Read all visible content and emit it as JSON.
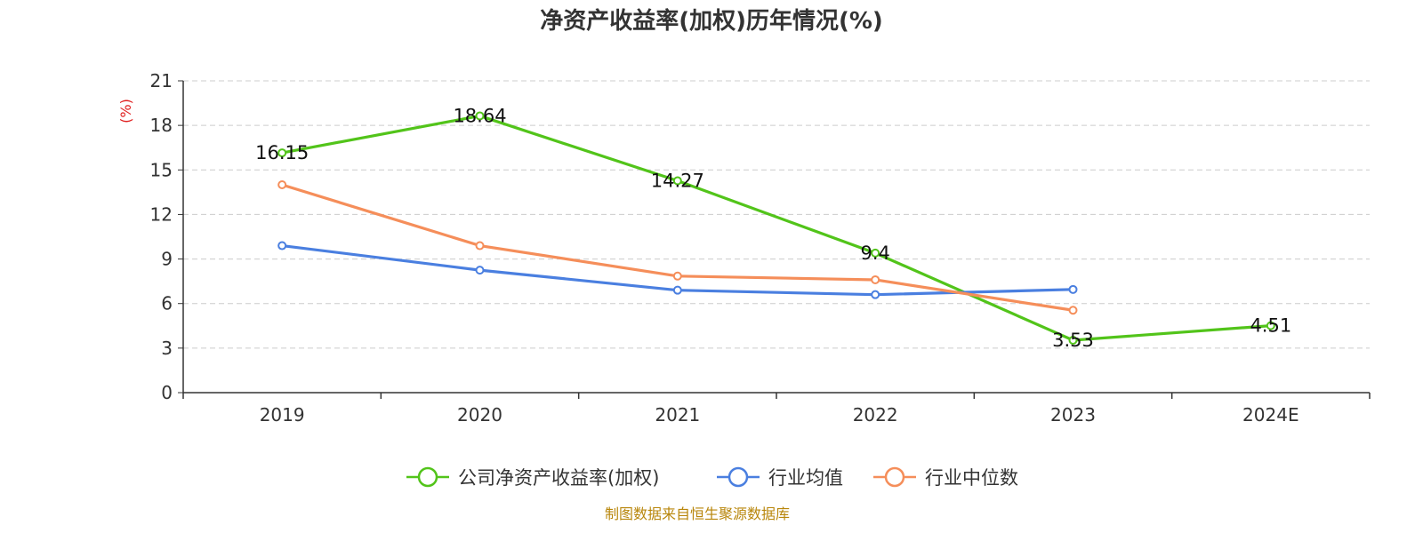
{
  "chart_data": {
    "type": "line",
    "title": "净资产收益率(加权)历年情况(%)",
    "ylabel": "(%)",
    "xlabel": "",
    "categories": [
      "2019",
      "2020",
      "2021",
      "2022",
      "2023",
      "2024E"
    ],
    "ylim": [
      0,
      21
    ],
    "yticks": [
      0,
      3,
      6,
      9,
      12,
      15,
      18,
      21
    ],
    "grid": true,
    "legend_position": "bottom-center",
    "series": [
      {
        "name": "公司净资产收益率(加权)",
        "color": "#52c41a",
        "values": [
          16.15,
          18.64,
          14.27,
          9.4,
          3.53,
          4.51
        ],
        "labels": [
          "16.15",
          "18.64",
          "14.27",
          "9.4",
          "3.53",
          "4.51"
        ]
      },
      {
        "name": "行业均值",
        "color": "#4a7fe0",
        "values": [
          9.9,
          8.25,
          6.9,
          6.6,
          6.95,
          null
        ]
      },
      {
        "name": "行业中位数",
        "color": "#f58e5a",
        "values": [
          14.0,
          9.9,
          7.85,
          7.6,
          5.55,
          null
        ]
      }
    ],
    "source": "制图数据来自恒生聚源数据库"
  }
}
